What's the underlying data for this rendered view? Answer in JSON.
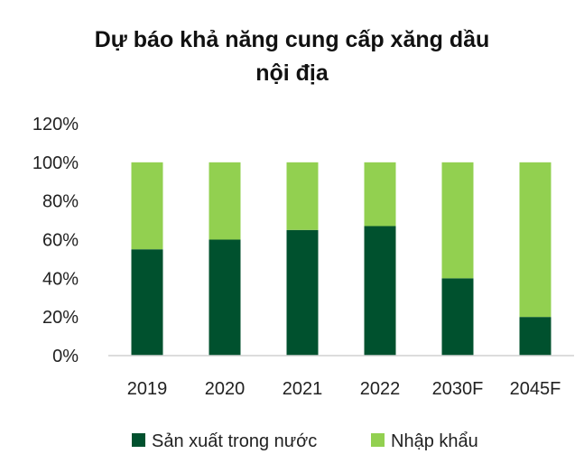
{
  "chart_data": {
    "type": "bar",
    "stacked": true,
    "title": "Dự báo khả năng cung cấp xăng dầu nội địa",
    "title_lines": [
      "Dự báo khả năng cung cấp xăng dầu",
      "nội địa"
    ],
    "categories": [
      "2019",
      "2020",
      "2021",
      "2022",
      "2030F",
      "2045F"
    ],
    "series": [
      {
        "name": "Sản xuất trong nước",
        "color": "#00512e",
        "values": [
          55,
          60,
          65,
          67,
          40,
          20
        ]
      },
      {
        "name": "Nhập khẩu",
        "color": "#92d050",
        "values": [
          45,
          40,
          35,
          33,
          60,
          80
        ]
      }
    ],
    "yticks": [
      "0%",
      "20%",
      "40%",
      "60%",
      "80%",
      "100%",
      "120%"
    ],
    "ylim": [
      0,
      120
    ],
    "ylabel": "",
    "xlabel": "",
    "grid": false,
    "legend": "bottom"
  }
}
